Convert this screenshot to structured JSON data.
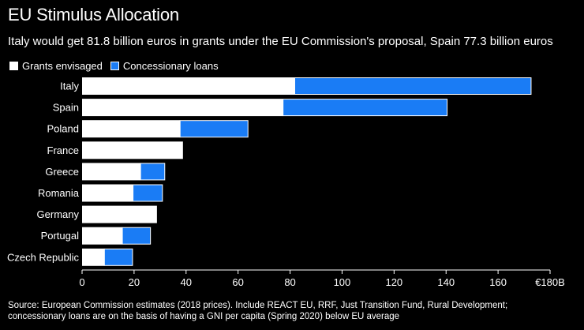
{
  "title": "EU Stimulus Allocation",
  "subtitle": "Italy would get 81.8 billion euros in grants under the EU Commission's proposal, Spain 77.3 billion euros",
  "legend": [
    {
      "name": "Grants envisaged",
      "color": "#ffffff"
    },
    {
      "name": "Concessionary loans",
      "color": "#1a7cf5"
    }
  ],
  "source_line1": "Source: European Commission estimates (2018 prices). Include REACT EU, RRF, Just Transition Fund, Rural Development;",
  "source_line2": "concessionary loans are on the basis of having a GNI per capita (Spring 2020) below EU average",
  "colors": {
    "background": "#000000",
    "grants": "#ffffff",
    "loans": "#1a7cf5",
    "text": "#ffffff"
  },
  "chart_data": {
    "type": "bar",
    "orientation": "horizontal",
    "stacked": true,
    "categories": [
      "Italy",
      "Spain",
      "Poland",
      "France",
      "Greece",
      "Romania",
      "Germany",
      "Portugal",
      "Czech Republic"
    ],
    "series": [
      {
        "name": "Grants envisaged",
        "values": [
          81.8,
          77.3,
          37.7,
          38.8,
          22.5,
          19.6,
          28.8,
          15.5,
          8.6
        ]
      },
      {
        "name": "Concessionary loans",
        "values": [
          90.9,
          63.1,
          26.1,
          0,
          9.3,
          11.3,
          0,
          10.8,
          10.8
        ]
      }
    ],
    "xlim": [
      0,
      180
    ],
    "xticks": [
      "0",
      "20",
      "40",
      "60",
      "80",
      "100",
      "120",
      "140",
      "160",
      "€180B"
    ],
    "grid": false
  }
}
